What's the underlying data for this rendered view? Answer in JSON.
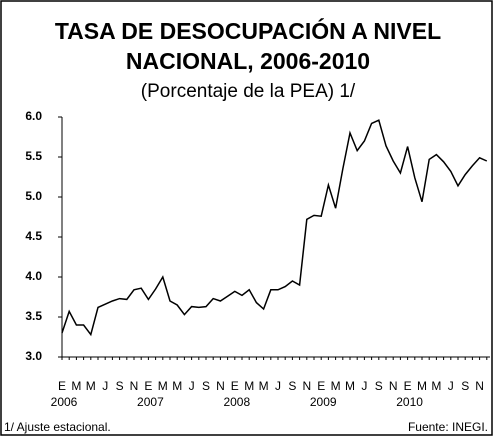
{
  "chart_data": {
    "type": "line",
    "title": [
      "TASA DE DESOCUPACIÓN A NIVEL",
      "NACIONAL, 2006-2010"
    ],
    "subtitle": "(Porcentaje de la PEA) 1/",
    "categories": [
      "E",
      null,
      "M",
      null,
      "M",
      null,
      "J",
      null,
      "S",
      null,
      "N",
      null,
      "E",
      null,
      "M",
      null,
      "M",
      null,
      "J",
      null,
      "S",
      null,
      "N",
      null,
      "E",
      null,
      "M",
      null,
      "M",
      null,
      "J",
      null,
      "S",
      null,
      "N",
      null,
      "E",
      null,
      "M",
      null,
      "M",
      null,
      "J",
      null,
      "S",
      null,
      "N",
      null,
      "E",
      null,
      "M",
      null,
      "M",
      null,
      "J",
      null,
      "S",
      null,
      "N",
      null
    ],
    "years": [
      "2006",
      "2007",
      "2008",
      "2009",
      "2010"
    ],
    "series": [
      {
        "name": "Tasa de desocupación",
        "color": "#000000",
        "values": [
          3.3,
          3.57,
          3.4,
          3.4,
          3.28,
          3.62,
          3.66,
          3.7,
          3.73,
          3.72,
          3.84,
          3.86,
          3.72,
          3.85,
          4.0,
          3.7,
          3.65,
          3.53,
          3.63,
          3.62,
          3.63,
          3.73,
          3.7,
          3.76,
          3.82,
          3.77,
          3.84,
          3.68,
          3.6,
          3.84,
          3.84,
          3.88,
          3.95,
          3.9,
          4.72,
          4.77,
          4.76,
          5.15,
          4.86,
          5.35,
          5.8,
          5.58,
          5.7,
          5.92,
          5.96,
          5.64,
          5.45,
          5.3,
          5.63,
          5.24,
          4.94,
          5.47,
          5.53,
          5.44,
          5.32,
          5.14,
          5.28,
          5.39,
          5.49,
          5.45
        ]
      }
    ],
    "ylim": [
      3,
      6
    ],
    "yticks": [
      {
        "value": 3,
        "label": "3.0"
      },
      {
        "value": 3.5,
        "label": "3.5"
      },
      {
        "value": 4,
        "label": "4.0"
      },
      {
        "value": 4.5,
        "label": "4.5"
      },
      {
        "value": 5,
        "label": "5.0"
      },
      {
        "value": 5.5,
        "label": "5.5"
      },
      {
        "value": 6,
        "label": "6.0"
      }
    ],
    "notes": [
      "1/ Ajuste estacional.",
      "Fuente: INEGI."
    ]
  }
}
